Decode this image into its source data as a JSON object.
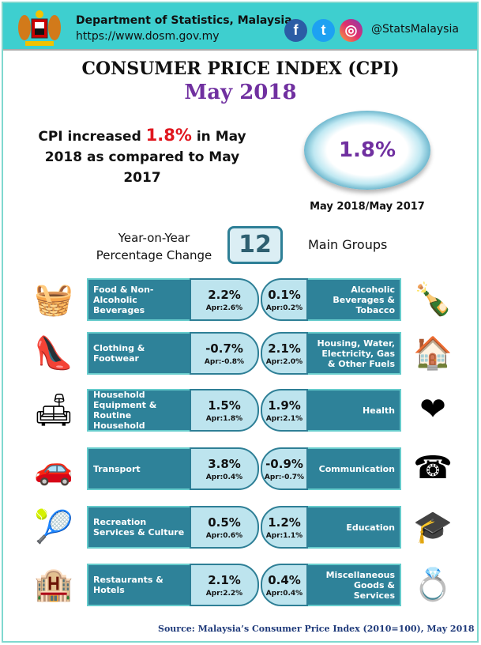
{
  "header": {
    "department": "Department of Statistics, Malaysia",
    "url": "https://www.dosm.gov.my",
    "social_handle": "@StatsMalaysia",
    "social_icons": [
      "facebook-icon",
      "twitter-icon",
      "instagram-icon"
    ]
  },
  "title": "CONSUMER PRICE INDEX (CPI)",
  "subtitle": "May 2018",
  "summary": {
    "prefix": "CPI increased ",
    "value": "1.8%",
    "suffix": " in May 2018 as compared to May 2017"
  },
  "headline": {
    "value": "1.8%",
    "period": "May 2018/May 2017"
  },
  "groups_header": {
    "left": "Year-on-Year Percentage Change",
    "count": "12",
    "right": "Main Groups"
  },
  "colors": {
    "accent": "#3ecfcf",
    "label_bg": "#2e8299",
    "value_bg": "#bde4ee",
    "title_purple": "#7030a0",
    "highlight_red": "#e0161e"
  },
  "groups": [
    {
      "label": "Food & Non-Alcoholic Beverages",
      "value": "2.2%",
      "apr": "Apr:2.6%",
      "icon": "food-basket-icon",
      "side": "left"
    },
    {
      "label": "Alcoholic Beverages & Tobacco",
      "value": "0.1%",
      "apr": "Apr:0.2%",
      "icon": "bottle-cigarette-icon",
      "side": "right"
    },
    {
      "label": "Clothing & Footwear",
      "value": "-0.7%",
      "apr": "Apr:-0.8%",
      "icon": "shoes-bag-icon",
      "side": "left"
    },
    {
      "label": "Housing, Water, Electricity, Gas & Other Fuels",
      "value": "2.1%",
      "apr": "Apr:2.0%",
      "icon": "house-icon",
      "side": "right"
    },
    {
      "label": "Furnishings, Household Equipment & Routine Household Maintenance",
      "value": "1.5%",
      "apr": "Apr:1.8%",
      "icon": "sofa-icon",
      "side": "left"
    },
    {
      "label": "Health",
      "value": "1.9%",
      "apr": "Apr:2.1%",
      "icon": "heart-icon",
      "side": "right"
    },
    {
      "label": "Transport",
      "value": "3.8%",
      "apr": "Apr:0.4%",
      "icon": "car-fuel-icon",
      "side": "left"
    },
    {
      "label": "Communication",
      "value": "-0.9%",
      "apr": "Apr:-0.7%",
      "icon": "telephone-icon",
      "side": "right"
    },
    {
      "label": "Recreation Services & Culture",
      "value": "0.5%",
      "apr": "Apr:0.6%",
      "icon": "sports-icon",
      "side": "left"
    },
    {
      "label": "Education",
      "value": "1.2%",
      "apr": "Apr:1.1%",
      "icon": "graduation-books-icon",
      "side": "right"
    },
    {
      "label": "Restaurants & Hotels",
      "value": "2.1%",
      "apr": "Apr:2.2%",
      "icon": "hotel-icon",
      "side": "left"
    },
    {
      "label": "Miscellaneous Goods & Services",
      "value": "0.4%",
      "apr": "Apr:0.4%",
      "icon": "jewellery-icon",
      "side": "right"
    }
  ],
  "source": "Source: Malaysia’s Consumer Price Index (2010=100), May 2018"
}
